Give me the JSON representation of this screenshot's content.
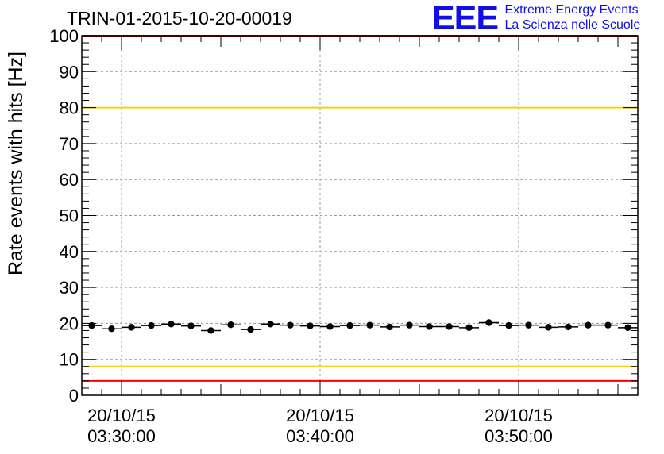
{
  "header": {
    "title": "TRIN-01-2015-10-20-00019",
    "logo_mark": "EEE",
    "logo_line1": "Extreme Energy Events",
    "logo_line2": "La Scienza nelle Scuole"
  },
  "colors": {
    "red_limit": "#ff0000",
    "yellow_limit": "#f5d020",
    "logo": "#1010e6"
  },
  "chart_data": {
    "type": "scatter",
    "title": "TRIN-01-2015-10-20-00019",
    "xlabel": "",
    "ylabel": "Rate events with hits [Hz]",
    "ylim": [
      0,
      100
    ],
    "yticks": [
      "0",
      "10",
      "20",
      "30",
      "40",
      "50",
      "60",
      "70",
      "80",
      "90",
      "100"
    ],
    "x_unit": "minutes after 03:30:00 on 20/10/15",
    "xlim": [
      -2.0,
      26.0
    ],
    "xticks": [
      {
        "x": 0,
        "date": "20/10/15",
        "time": "03:30:00"
      },
      {
        "x": 10,
        "date": "20/10/15",
        "time": "03:40:00"
      },
      {
        "x": 20,
        "date": "20/10/15",
        "time": "03:50:00"
      }
    ],
    "bin_width_minutes": 1,
    "x": [
      -1.5,
      -0.5,
      0.5,
      1.5,
      2.5,
      3.5,
      4.5,
      5.5,
      6.5,
      7.5,
      8.5,
      9.5,
      10.5,
      11.5,
      12.5,
      13.5,
      14.5,
      15.5,
      16.5,
      17.5,
      18.5,
      19.5,
      20.5,
      21.5,
      22.5,
      23.5,
      24.5,
      25.5
    ],
    "values": [
      19.4,
      18.5,
      18.9,
      19.4,
      19.8,
      19.3,
      18.0,
      19.6,
      18.3,
      19.8,
      19.5,
      19.3,
      19.1,
      19.4,
      19.5,
      19.0,
      19.5,
      19.1,
      19.1,
      18.8,
      20.2,
      19.4,
      19.5,
      18.9,
      19.0,
      19.5,
      19.5,
      18.8
    ],
    "reference_lines": [
      {
        "name": "red-lower-limit",
        "y": 4,
        "color": "#ff0000"
      },
      {
        "name": "yellow-lower-limit",
        "y": 8,
        "color": "#f5d020"
      },
      {
        "name": "yellow-upper-limit",
        "y": 80,
        "color": "#f5d020"
      },
      {
        "name": "red-upper-limit",
        "y": 100,
        "color": "#ff0000"
      }
    ],
    "grid": true
  }
}
